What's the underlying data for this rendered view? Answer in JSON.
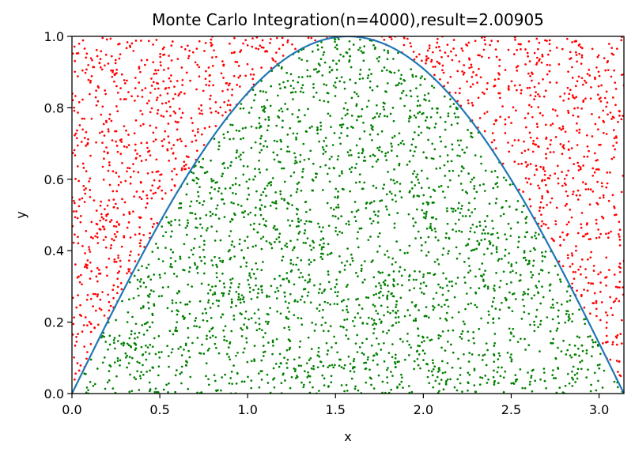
{
  "chart_data": {
    "type": "scatter",
    "title": "Monte Carlo Integration(n=4000),result=2.00905",
    "xlabel": "x",
    "ylabel": "y",
    "xlim": [
      0,
      3.14159
    ],
    "ylim": [
      0,
      1
    ],
    "grid": false,
    "x_ticks": [
      "0.0",
      "0.5",
      "1.0",
      "1.5",
      "2.0",
      "2.5",
      "3.0"
    ],
    "y_ticks": [
      "0.0",
      "0.2",
      "0.4",
      "0.6",
      "0.8",
      "1.0"
    ],
    "sample_count": 4000,
    "estimate": 2.00905,
    "curve": {
      "function": "sin(x)",
      "color": "#1f77b4"
    },
    "series": [
      {
        "role": "under curve (y <= sin x)",
        "color": "#008000"
      },
      {
        "role": "above curve (y > sin x)",
        "color": "#ff0000"
      }
    ]
  }
}
